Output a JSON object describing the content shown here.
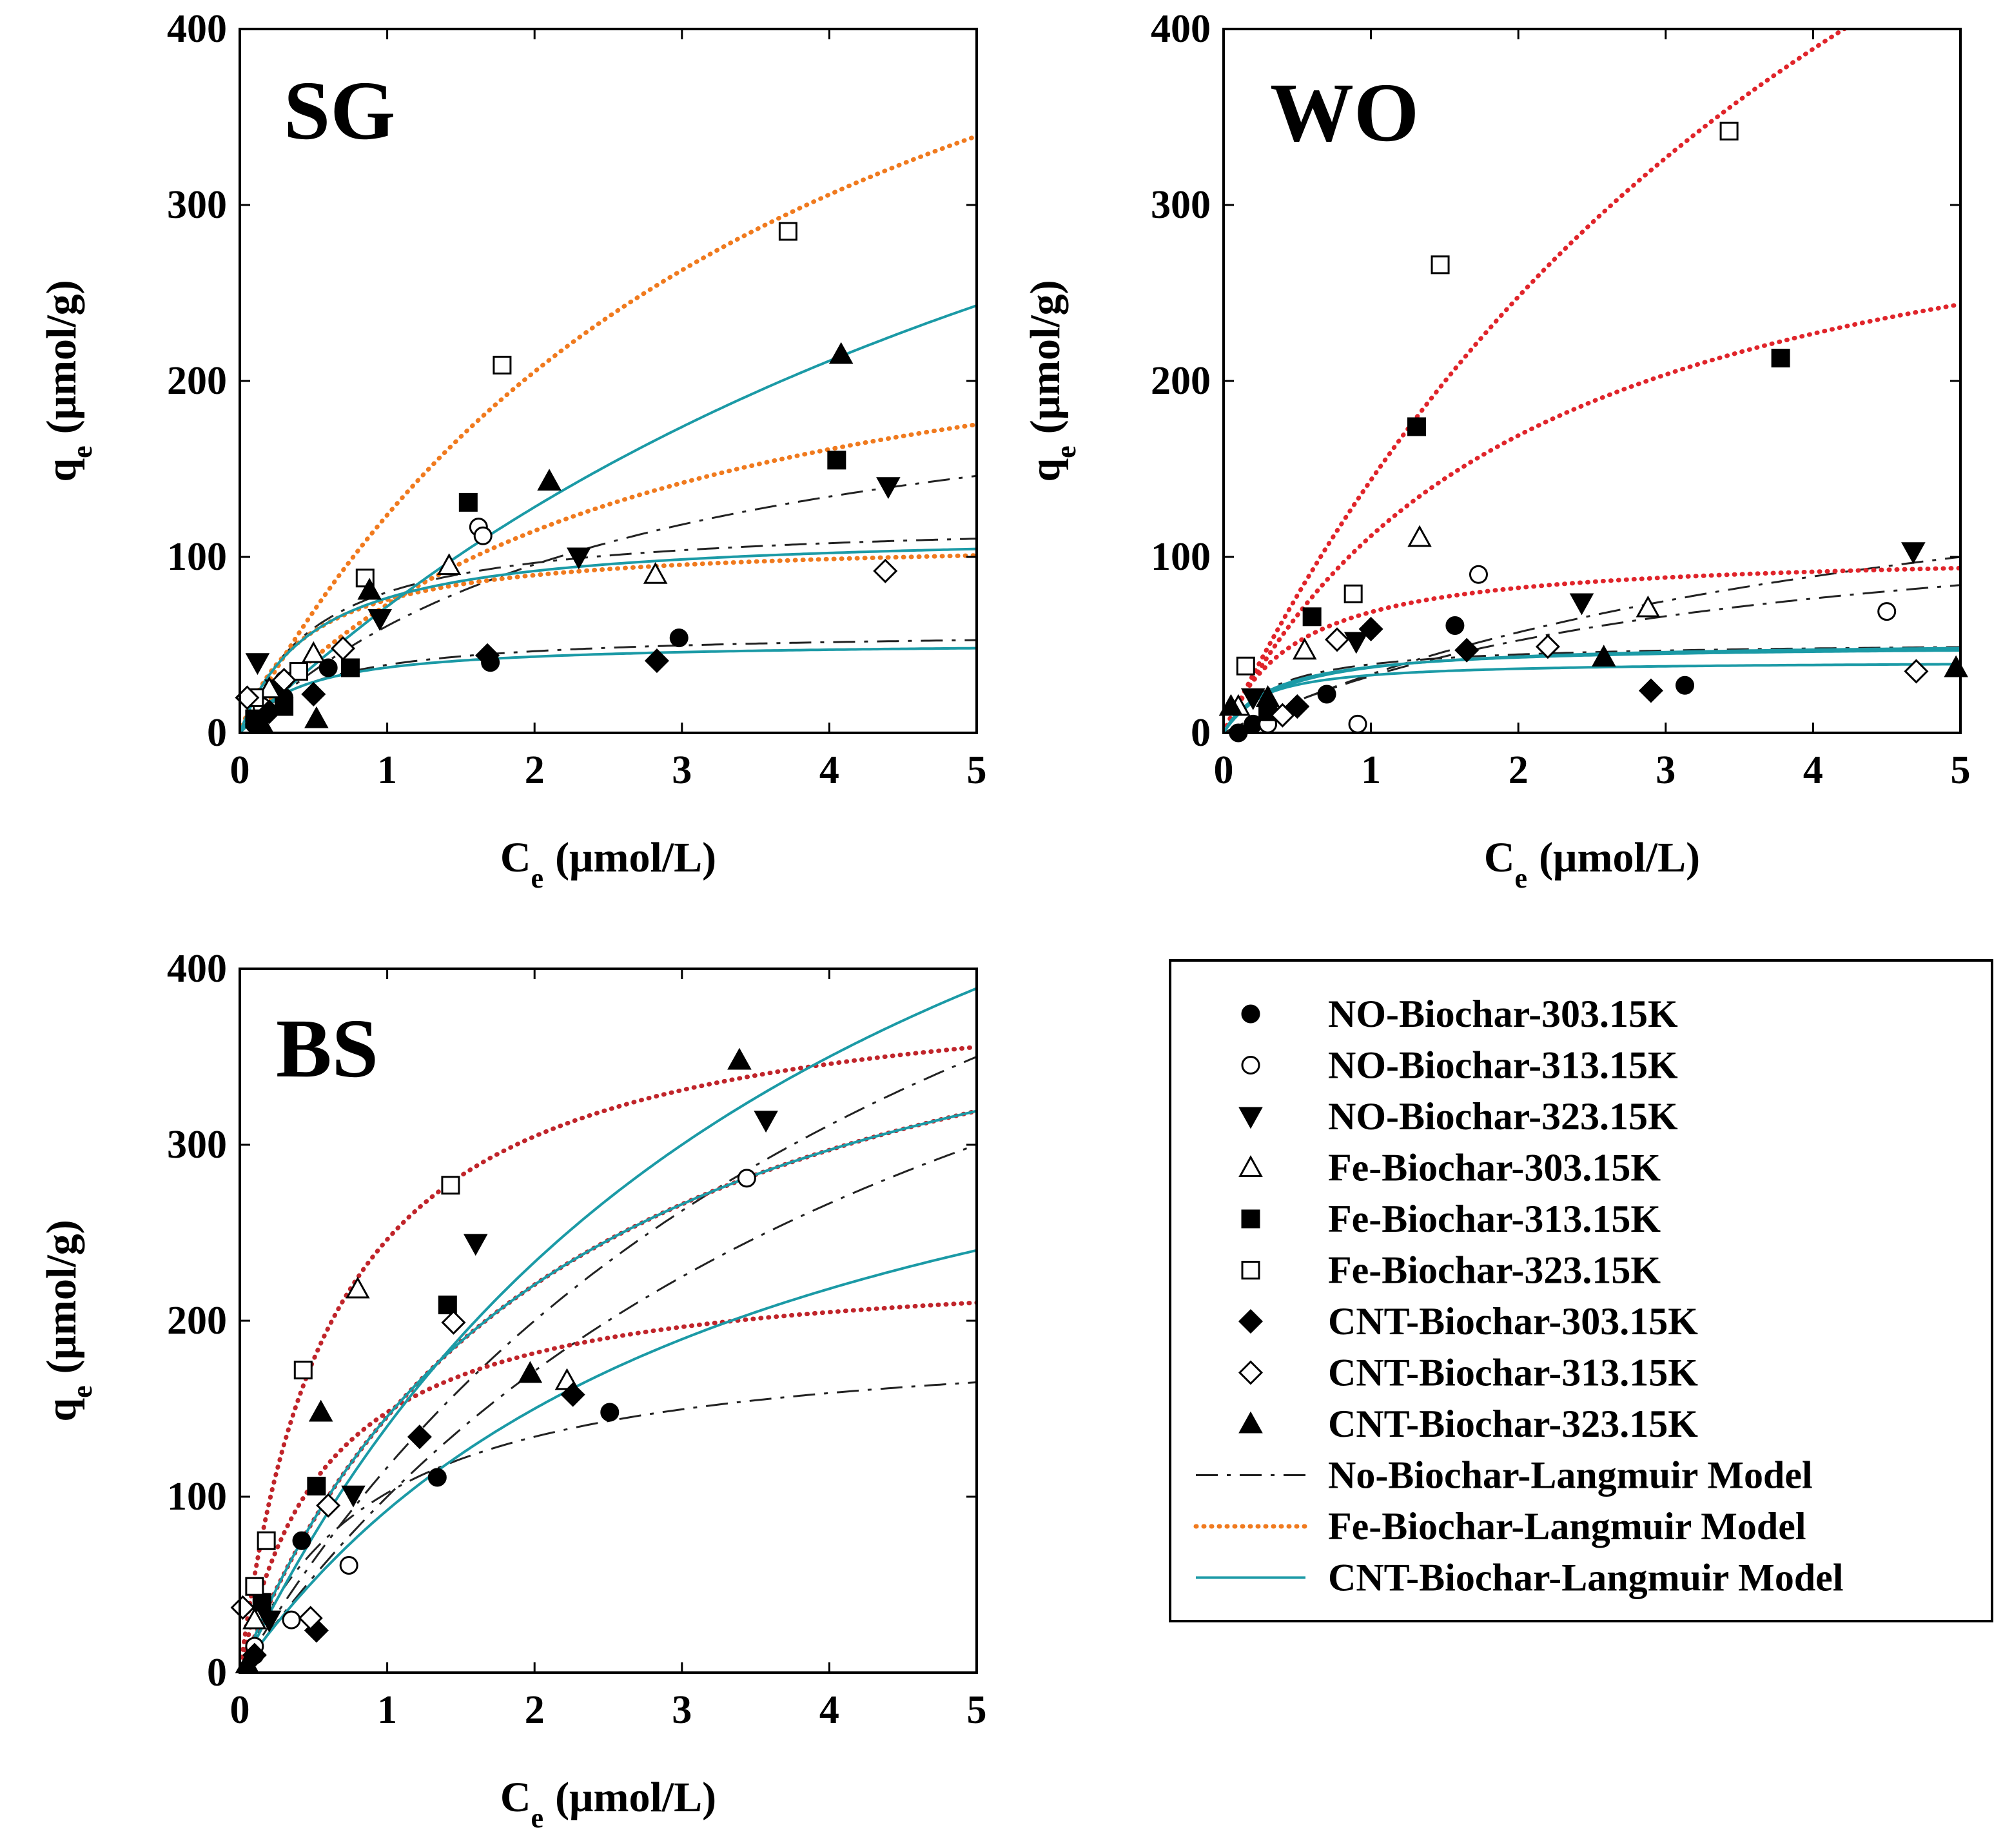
{
  "figure_description_colors": {
    "black": "#000000",
    "fe_model_orange": "#f07a1e",
    "fe_model_red": "#e0242a",
    "fe_model_darkred": "#c0242a",
    "cnt_model_teal": "#1b9aa6"
  },
  "legend": {
    "entries": [
      {
        "label": "NO-Biochar-303.15K",
        "marker": "circle-filled"
      },
      {
        "label": "NO-Biochar-313.15K",
        "marker": "circle-open"
      },
      {
        "label": "NO-Biochar-323.15K",
        "marker": "triangle-down-filled"
      },
      {
        "label": "Fe-Biochar-303.15K",
        "marker": "triangle-up-open"
      },
      {
        "label": "Fe-Biochar-313.15K",
        "marker": "square-filled"
      },
      {
        "label": "Fe-Biochar-323.15K",
        "marker": "square-open"
      },
      {
        "label": "CNT-Biochar-303.15K",
        "marker": "diamond-filled"
      },
      {
        "label": "CNT-Biochar-313.15K",
        "marker": "diamond-open"
      },
      {
        "label": "CNT-Biochar-323.15K",
        "marker": "triangle-up-filled"
      },
      {
        "label": "No-Biochar-Langmuir Model",
        "line": "dash"
      },
      {
        "label": "Fe-Biochar-Langmuir Model",
        "line": "dotted-orange"
      },
      {
        "label": "CNT-Biochar-Langmuir Model",
        "line": "solid-teal"
      }
    ]
  },
  "chart_data": [
    {
      "type": "scatter",
      "panel_label": "SG",
      "xlabel_main": "C",
      "xlabel_sub": "e",
      "xlabel_unit": "(μmol/L)",
      "ylabel_main": "q",
      "ylabel_sub": "e",
      "ylabel_unit": "(μmol/g)",
      "xlim": [
        0,
        5
      ],
      "ylim": [
        0,
        400
      ],
      "xticks": [
        0,
        1,
        2,
        3,
        4,
        5
      ],
      "yticks": [
        0,
        100,
        200,
        300,
        400
      ],
      "fe_model_color": "#f07a1e",
      "series": [
        {
          "name": "NO-Biochar-303.15K",
          "marker": "circle-filled",
          "points": [
            [
              0.1,
              5
            ],
            [
              0.3,
              20
            ],
            [
              0.6,
              37
            ],
            [
              1.7,
              40
            ],
            [
              2.98,
              54
            ]
          ]
        },
        {
          "name": "NO-Biochar-313.15K",
          "marker": "circle-open",
          "points": [
            [
              0.15,
              15
            ],
            [
              0.3,
              30
            ],
            [
              1.62,
              117
            ],
            [
              1.65,
              112
            ]
          ]
        },
        {
          "name": "NO-Biochar-323.15K",
          "marker": "triangle-down-filled",
          "points": [
            [
              0.12,
              40
            ],
            [
              0.25,
              25
            ],
            [
              0.95,
              65
            ],
            [
              2.3,
              100
            ],
            [
              4.4,
              140
            ]
          ]
        },
        {
          "name": "Fe-Biochar-303.15K",
          "marker": "triangle-up-open",
          "points": [
            [
              0.2,
              25
            ],
            [
              0.5,
              45
            ],
            [
              1.42,
              95
            ],
            [
              2.82,
              90
            ]
          ]
        },
        {
          "name": "Fe-Biochar-313.15K",
          "marker": "square-filled",
          "points": [
            [
              0.1,
              8
            ],
            [
              0.3,
              15
            ],
            [
              0.75,
              37
            ],
            [
              1.55,
              131
            ],
            [
              4.05,
              155
            ]
          ]
        },
        {
          "name": "Fe-Biochar-323.15K",
          "marker": "square-open",
          "points": [
            [
              0.1,
              20
            ],
            [
              0.4,
              35
            ],
            [
              0.85,
              88
            ],
            [
              1.78,
              209
            ],
            [
              3.72,
              285
            ]
          ]
        },
        {
          "name": "CNT-Biochar-303.15K",
          "marker": "diamond-filled",
          "points": [
            [
              0.2,
              12
            ],
            [
              0.5,
              22
            ],
            [
              1.68,
              44
            ],
            [
              2.83,
              41
            ]
          ]
        },
        {
          "name": "CNT-Biochar-313.15K",
          "marker": "diamond-open",
          "points": [
            [
              0.05,
              20
            ],
            [
              0.3,
              30
            ],
            [
              0.7,
              48
            ],
            [
              4.38,
              92
            ]
          ]
        },
        {
          "name": "CNT-Biochar-323.15K",
          "marker": "triangle-up-filled",
          "points": [
            [
              0.15,
              5
            ],
            [
              0.52,
              8
            ],
            [
              0.88,
              81
            ],
            [
              2.1,
              143
            ],
            [
              4.08,
              215
            ]
          ]
        }
      ],
      "models": [
        {
          "group": "No-Biochar",
          "style": "dash",
          "qmax": 58,
          "K": 2.0
        },
        {
          "group": "No-Biochar",
          "style": "dash",
          "qmax": 122,
          "K": 1.9
        },
        {
          "group": "No-Biochar",
          "style": "dash",
          "qmax": 225,
          "K": 0.37
        },
        {
          "group": "Fe-Biochar",
          "style": "dotted",
          "qmax": 110,
          "K": 2.2
        },
        {
          "group": "Fe-Biochar",
          "style": "dotted",
          "qmax": 270,
          "K": 0.37
        },
        {
          "group": "Fe-Biochar",
          "style": "dotted",
          "qmax": 600,
          "K": 0.26
        },
        {
          "group": "CNT-Biochar",
          "style": "solid",
          "qmax": 52,
          "K": 2.5
        },
        {
          "group": "CNT-Biochar",
          "style": "solid",
          "qmax": 115,
          "K": 2.0
        },
        {
          "group": "CNT-Biochar",
          "style": "solid",
          "qmax": 600,
          "K": 0.136
        }
      ]
    },
    {
      "type": "scatter",
      "panel_label": "WO",
      "xlabel_main": "C",
      "xlabel_sub": "e",
      "xlabel_unit": "(μmol/L)",
      "ylabel_main": "q",
      "ylabel_sub": "e",
      "ylabel_unit": "(μmol/g)",
      "xlim": [
        0,
        5
      ],
      "ylim": [
        0,
        400
      ],
      "xticks": [
        0,
        1,
        2,
        3,
        4,
        5
      ],
      "yticks": [
        0,
        100,
        200,
        300,
        400
      ],
      "fe_model_color": "#e0242a",
      "series": [
        {
          "name": "NO-Biochar-303.15K",
          "marker": "circle-filled",
          "points": [
            [
              0.1,
              0
            ],
            [
              0.2,
              5
            ],
            [
              0.7,
              22
            ],
            [
              1.57,
              61
            ],
            [
              3.13,
              27
            ]
          ]
        },
        {
          "name": "NO-Biochar-313.15K",
          "marker": "circle-open",
          "points": [
            [
              0.3,
              5
            ],
            [
              0.91,
              5
            ],
            [
              1.73,
              90
            ],
            [
              4.5,
              69
            ]
          ]
        },
        {
          "name": "NO-Biochar-323.15K",
          "marker": "triangle-down-filled",
          "points": [
            [
              0.2,
              20
            ],
            [
              0.9,
              52
            ],
            [
              2.43,
              74
            ],
            [
              4.68,
              103
            ]
          ]
        },
        {
          "name": "Fe-Biochar-303.15K",
          "marker": "triangle-up-open",
          "points": [
            [
              0.1,
              15
            ],
            [
              0.55,
              47
            ],
            [
              1.33,
              111
            ],
            [
              2.88,
              71
            ]
          ]
        },
        {
          "name": "Fe-Biochar-313.15K",
          "marker": "square-filled",
          "points": [
            [
              0.3,
              12
            ],
            [
              0.6,
              66
            ],
            [
              1.31,
              174
            ],
            [
              3.78,
              213
            ]
          ]
        },
        {
          "name": "Fe-Biochar-323.15K",
          "marker": "square-open",
          "points": [
            [
              0.15,
              38
            ],
            [
              0.88,
              79
            ],
            [
              1.47,
              266
            ],
            [
              3.43,
              342
            ]
          ]
        },
        {
          "name": "CNT-Biochar-303.15K",
          "marker": "diamond-filled",
          "points": [
            [
              0.5,
              15
            ],
            [
              1.0,
              59
            ],
            [
              1.65,
              47
            ],
            [
              2.9,
              24
            ]
          ]
        },
        {
          "name": "CNT-Biochar-313.15K",
          "marker": "diamond-open",
          "points": [
            [
              0.4,
              10
            ],
            [
              0.77,
              53
            ],
            [
              2.2,
              49
            ],
            [
              4.7,
              35
            ]
          ]
        },
        {
          "name": "CNT-Biochar-323.15K",
          "marker": "triangle-up-filled",
          "points": [
            [
              0.05,
              15
            ],
            [
              0.3,
              20
            ],
            [
              2.58,
              43
            ],
            [
              4.97,
              37
            ]
          ]
        }
      ],
      "models": [
        {
          "group": "No-Biochar",
          "style": "dash",
          "qmax": 52,
          "K": 3.0
        },
        {
          "group": "No-Biochar",
          "style": "dash",
          "qmax": 140,
          "K": 0.3
        },
        {
          "group": "No-Biochar",
          "style": "dash",
          "qmax": 200,
          "K": 0.2
        },
        {
          "group": "Fe-Biochar",
          "style": "dotted",
          "qmax": 103,
          "K": 2.0
        },
        {
          "group": "Fe-Biochar",
          "style": "dotted",
          "qmax": 345,
          "K": 0.48
        },
        {
          "group": "Fe-Biochar",
          "style": "dotted",
          "qmax": 900,
          "K": 0.19
        },
        {
          "group": "CNT-Biochar",
          "style": "solid",
          "qmax": 41,
          "K": 4.0
        },
        {
          "group": "CNT-Biochar",
          "style": "solid",
          "qmax": 50,
          "K": 3.0
        },
        {
          "group": "CNT-Biochar",
          "style": "solid",
          "qmax": 52,
          "K": 2.5
        }
      ]
    },
    {
      "type": "scatter",
      "panel_label": "BS",
      "xlabel_main": "C",
      "xlabel_sub": "e",
      "xlabel_unit": "(μmol/L)",
      "ylabel_main": "q",
      "ylabel_sub": "e",
      "ylabel_unit": "(μmol/g)",
      "xlim": [
        0,
        5
      ],
      "ylim": [
        0,
        400
      ],
      "xticks": [
        0,
        1,
        2,
        3,
        4,
        5
      ],
      "yticks": [
        0,
        100,
        200,
        300,
        400
      ],
      "fe_model_color": "#c0242a",
      "series": [
        {
          "name": "NO-Biochar-303.15K",
          "marker": "circle-filled",
          "points": [
            [
              0.1,
              10
            ],
            [
              0.42,
              75
            ],
            [
              1.34,
              111
            ],
            [
              2.51,
              148
            ]
          ]
        },
        {
          "name": "NO-Biochar-313.15K",
          "marker": "circle-open",
          "points": [
            [
              0.1,
              15
            ],
            [
              0.35,
              30
            ],
            [
              0.74,
              61
            ],
            [
              3.44,
              281
            ]
          ]
        },
        {
          "name": "NO-Biochar-323.15K",
          "marker": "triangle-down-filled",
          "points": [
            [
              0.2,
              30
            ],
            [
              0.77,
              101
            ],
            [
              1.6,
              244
            ],
            [
              3.57,
              314
            ]
          ]
        },
        {
          "name": "Fe-Biochar-303.15K",
          "marker": "triangle-up-open",
          "points": [
            [
              0.1,
              30
            ],
            [
              0.8,
              218
            ],
            [
              2.22,
              166
            ]
          ]
        },
        {
          "name": "Fe-Biochar-313.15K",
          "marker": "square-filled",
          "points": [
            [
              0.15,
              40
            ],
            [
              0.52,
              106
            ],
            [
              1.41,
              209
            ]
          ]
        },
        {
          "name": "Fe-Biochar-323.15K",
          "marker": "square-open",
          "points": [
            [
              0.1,
              49
            ],
            [
              0.18,
              75
            ],
            [
              0.43,
              172
            ],
            [
              1.43,
              277
            ]
          ]
        },
        {
          "name": "CNT-Biochar-303.15K",
          "marker": "diamond-filled",
          "points": [
            [
              0.1,
              10
            ],
            [
              0.52,
              24
            ],
            [
              1.22,
              134
            ],
            [
              2.26,
              158
            ]
          ]
        },
        {
          "name": "CNT-Biochar-313.15K",
          "marker": "diamond-open",
          "points": [
            [
              0.02,
              37
            ],
            [
              0.48,
              31
            ],
            [
              0.6,
              95
            ],
            [
              1.45,
              199
            ]
          ]
        },
        {
          "name": "CNT-Biochar-323.15K",
          "marker": "triangle-up-filled",
          "points": [
            [
              0.05,
              5
            ],
            [
              0.55,
              148
            ],
            [
              1.97,
              170
            ],
            [
              3.39,
              348
            ]
          ]
        }
      ],
      "models": [
        {
          "group": "No-Biochar",
          "style": "dash",
          "qmax": 195,
          "K": 1.1
        },
        {
          "group": "No-Biochar",
          "style": "dash",
          "qmax": 600,
          "K": 0.2
        },
        {
          "group": "No-Biochar",
          "style": "dash",
          "qmax": 700,
          "K": 0.2
        },
        {
          "group": "Fe-Biochar",
          "style": "dotted",
          "qmax": 235,
          "K": 1.7
        },
        {
          "group": "Fe-Biochar",
          "style": "dotted",
          "qmax": 455,
          "K": 0.47
        },
        {
          "group": "Fe-Biochar",
          "style": "dotted",
          "qmax": 400,
          "K": 1.6
        },
        {
          "group": "CNT-Biochar",
          "style": "solid",
          "qmax": 400,
          "K": 0.3
        },
        {
          "group": "CNT-Biochar",
          "style": "solid",
          "qmax": 455,
          "K": 0.47
        },
        {
          "group": "CNT-Biochar",
          "style": "solid",
          "qmax": 700,
          "K": 0.25
        }
      ]
    }
  ]
}
